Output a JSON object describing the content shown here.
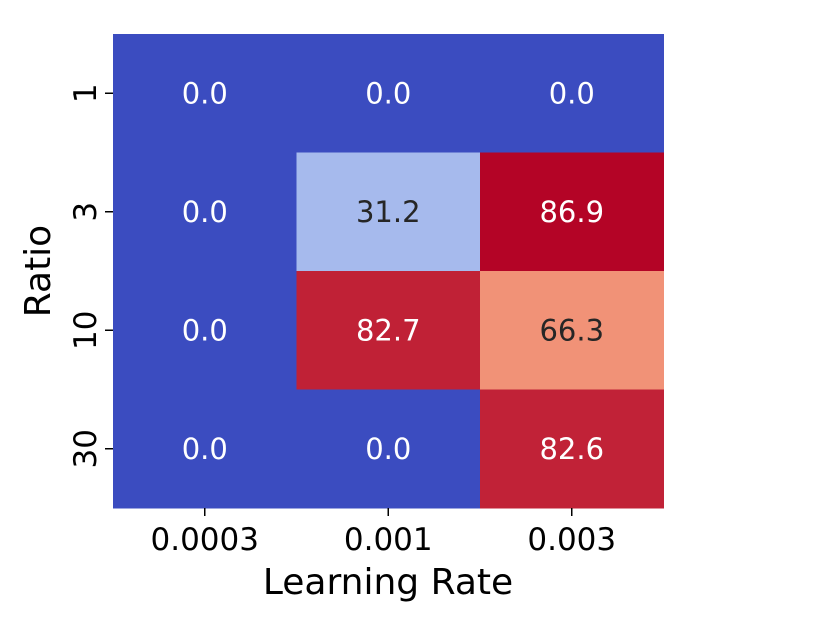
{
  "chart_data": {
    "type": "heatmap",
    "title": "",
    "xlabel": "Learning Rate",
    "ylabel": "Ratio",
    "x_categories": [
      "0.0003",
      "0.001",
      "0.003"
    ],
    "y_categories": [
      "1",
      "3",
      "10",
      "30"
    ],
    "values": [
      [
        0.0,
        0.0,
        0.0
      ],
      [
        0.0,
        31.2,
        86.9
      ],
      [
        0.0,
        82.7,
        66.3
      ],
      [
        0.0,
        0.0,
        82.6
      ]
    ],
    "value_labels": [
      [
        "0.0",
        "0.0",
        "0.0"
      ],
      [
        "0.0",
        "31.2",
        "86.9"
      ],
      [
        "0.0",
        "82.7",
        "66.3"
      ],
      [
        "0.0",
        "0.0",
        "82.6"
      ]
    ],
    "colormap": "coolwarm",
    "vmin": 0.0,
    "vmax": 86.9,
    "colorbar": false,
    "grid": false
  }
}
